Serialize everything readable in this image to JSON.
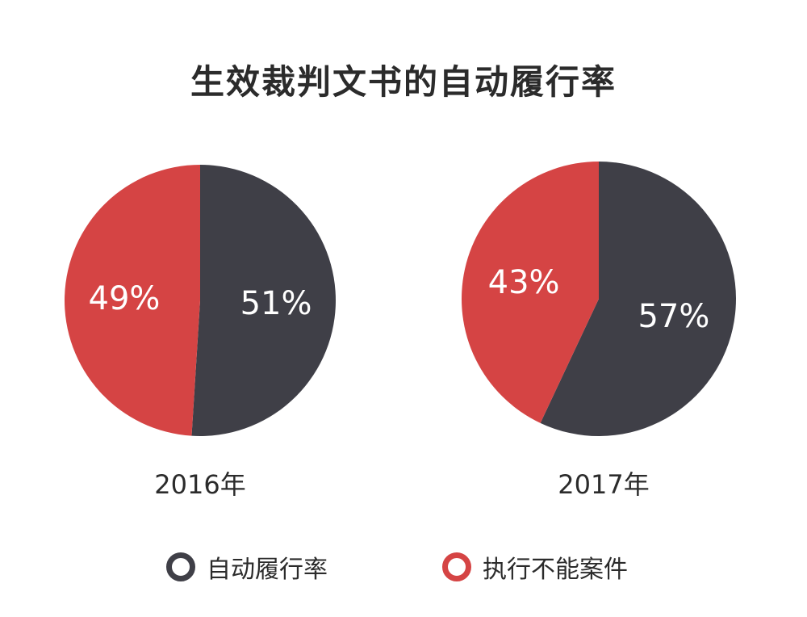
{
  "chart_data": {
    "type": "pie",
    "title": "生效裁判文书的自动履行率",
    "series_names": [
      "自动履行率",
      "执行不能案件"
    ],
    "colors": {
      "自动履行率": "#3f3f47",
      "执行不能案件": "#d54444"
    },
    "legend_position": "bottom",
    "pies": [
      {
        "label": "2016年",
        "slices": [
          {
            "name": "自动履行率",
            "value": 51,
            "label": "51%"
          },
          {
            "name": "执行不能案件",
            "value": 49,
            "label": "49%"
          }
        ]
      },
      {
        "label": "2017年",
        "slices": [
          {
            "name": "自动履行率",
            "value": 57,
            "label": "57%"
          },
          {
            "name": "执行不能案件",
            "value": 43,
            "label": "43%"
          }
        ]
      }
    ]
  }
}
